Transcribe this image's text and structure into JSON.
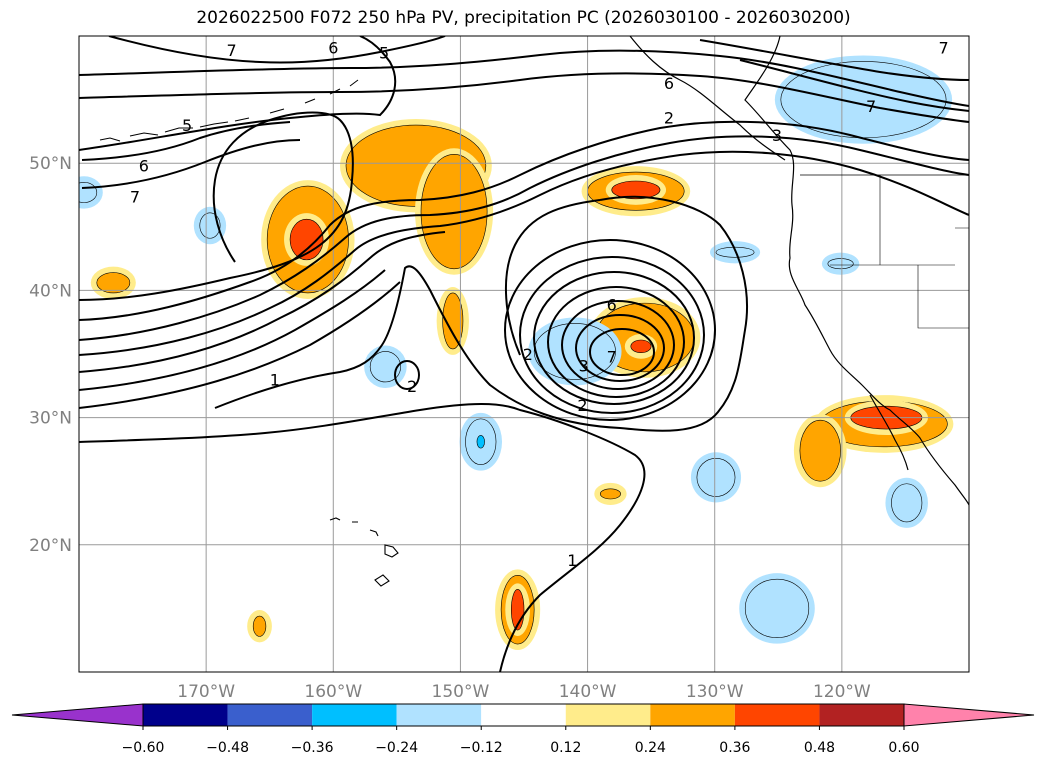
{
  "title": "2026022500 F072 250 hPa PV, precipitation PC (2026030100 - 2026030200)",
  "map": {
    "lon_range": [
      -180,
      -110
    ],
    "lat_range": [
      10,
      60
    ],
    "lon_ticks": [
      {
        "lon": -170,
        "label": "170°W"
      },
      {
        "lon": -160,
        "label": "160°W"
      },
      {
        "lon": -150,
        "label": "150°W"
      },
      {
        "lon": -140,
        "label": "140°W"
      },
      {
        "lon": -130,
        "label": "130°W"
      },
      {
        "lon": -120,
        "label": "120°W"
      }
    ],
    "lat_ticks": [
      {
        "lat": 20,
        "label": "20°N"
      },
      {
        "lat": 30,
        "label": "30°N"
      },
      {
        "lat": 40,
        "label": "40°N"
      },
      {
        "lat": 50,
        "label": "50°N"
      }
    ],
    "contour_labels": [
      {
        "text": "7",
        "lon": -168,
        "lat": 58.9
      },
      {
        "text": "6",
        "lon": -160,
        "lat": 59.1
      },
      {
        "text": "5",
        "lon": -156,
        "lat": 58.7
      },
      {
        "text": "5",
        "lon": -171.5,
        "lat": 53.0
      },
      {
        "text": "6",
        "lon": -174.9,
        "lat": 49.8
      },
      {
        "text": "7",
        "lon": -175.6,
        "lat": 47.4
      },
      {
        "text": "7",
        "lon": -112,
        "lat": 59.1
      },
      {
        "text": "6",
        "lon": -133.6,
        "lat": 56.3
      },
      {
        "text": "2",
        "lon": -133.6,
        "lat": 53.6
      },
      {
        "text": "3",
        "lon": -125.1,
        "lat": 52.2
      },
      {
        "text": "7",
        "lon": -117.7,
        "lat": 54.5
      },
      {
        "text": "6",
        "lon": -138.1,
        "lat": 38.9
      },
      {
        "text": "7",
        "lon": -138.1,
        "lat": 34.8
      },
      {
        "text": "3",
        "lon": -140.3,
        "lat": 34.1
      },
      {
        "text": "2",
        "lon": -140.4,
        "lat": 31.0
      },
      {
        "text": "1",
        "lon": -164.6,
        "lat": 33.0
      },
      {
        "text": "2",
        "lon": -153.8,
        "lat": 32.5
      },
      {
        "text": "1",
        "lon": -141.2,
        "lat": 18.8
      },
      {
        "text": "2",
        "lon": -144.7,
        "lat": 35.0
      }
    ],
    "precip_features": [
      {
        "value": 0.24,
        "lon": -162,
        "lat": 44,
        "rx": 3.2,
        "ry": 4.2
      },
      {
        "value": 0.36,
        "lon": -162.1,
        "lat": 44,
        "rx": 1.3,
        "ry": 1.6
      },
      {
        "value": 0.24,
        "lon": -153.5,
        "lat": 49.8,
        "rx": 5.5,
        "ry": 3.2
      },
      {
        "value": 0.24,
        "lon": -150.5,
        "lat": 46.2,
        "rx": 2.6,
        "ry": 4.5
      },
      {
        "value": 0.24,
        "lon": -136.2,
        "lat": 47.8,
        "rx": 3.8,
        "ry": 1.5
      },
      {
        "value": 0.36,
        "lon": -136.2,
        "lat": 47.9,
        "rx": 1.9,
        "ry": 0.7
      },
      {
        "value": 0.24,
        "lon": -135.5,
        "lat": 36.3,
        "rx": 3.9,
        "ry": 2.7
      },
      {
        "value": 0.36,
        "lon": -135.8,
        "lat": 35.6,
        "rx": 0.8,
        "ry": 0.5
      },
      {
        "value": 0.24,
        "lon": -150.6,
        "lat": 37.6,
        "rx": 0.8,
        "ry": 2.2
      },
      {
        "value": 0.24,
        "lon": -177.3,
        "lat": 40.6,
        "rx": 1.3,
        "ry": 0.8
      },
      {
        "value": 0.24,
        "lon": -145.5,
        "lat": 14.9,
        "rx": 1.3,
        "ry": 2.7
      },
      {
        "value": 0.36,
        "lon": -145.5,
        "lat": 14.9,
        "rx": 0.5,
        "ry": 1.6
      },
      {
        "value": 0.24,
        "lon": -165.8,
        "lat": 13.6,
        "rx": 0.5,
        "ry": 0.8
      },
      {
        "value": 0.24,
        "lon": -138.2,
        "lat": 24.0,
        "rx": 0.8,
        "ry": 0.4
      },
      {
        "value": 0.24,
        "lon": -116.7,
        "lat": 29.5,
        "rx": 5.0,
        "ry": 1.8
      },
      {
        "value": 0.36,
        "lon": -116.5,
        "lat": 30.0,
        "rx": 2.8,
        "ry": 0.9
      },
      {
        "value": 0.24,
        "lon": -121.7,
        "lat": 27.4,
        "rx": 1.6,
        "ry": 2.4
      },
      {
        "value": -0.24,
        "lon": -118.3,
        "lat": 55.0,
        "rx": 6.5,
        "ry": 3.0
      },
      {
        "value": -0.24,
        "lon": -141.0,
        "lat": 35.2,
        "rx": 3.2,
        "ry": 2.2
      },
      {
        "value": -0.24,
        "lon": -155.9,
        "lat": 34.0,
        "rx": 1.2,
        "ry": 1.2
      },
      {
        "value": -0.24,
        "lon": -148.4,
        "lat": 28.1,
        "rx": 1.2,
        "ry": 1.8
      },
      {
        "value": -0.36,
        "lon": -148.4,
        "lat": 28.1,
        "rx": 0.3,
        "ry": 0.5
      },
      {
        "value": -0.24,
        "lon": -129.9,
        "lat": 25.3,
        "rx": 1.5,
        "ry": 1.5
      },
      {
        "value": -0.24,
        "lon": -125.1,
        "lat": 15.0,
        "rx": 2.5,
        "ry": 2.3
      },
      {
        "value": -0.24,
        "lon": -114.9,
        "lat": 23.3,
        "rx": 1.2,
        "ry": 1.5
      },
      {
        "value": -0.24,
        "lon": -179.6,
        "lat": 47.7,
        "rx": 1.0,
        "ry": 0.8
      },
      {
        "value": -0.24,
        "lon": -169.7,
        "lat": 45.1,
        "rx": 0.8,
        "ry": 1.0
      },
      {
        "value": -0.24,
        "lon": -128.4,
        "lat": 43.0,
        "rx": 1.5,
        "ry": 0.4
      },
      {
        "value": -0.24,
        "lon": -120.1,
        "lat": 42.1,
        "rx": 1.0,
        "ry": 0.4
      }
    ]
  },
  "colorbar": {
    "colors": [
      "#9932CC",
      "#00008B",
      "#3A5FCD",
      "#00BFFF",
      "#B0E2FF",
      "#FFFFFF",
      "#FFEC8B",
      "#FFA500",
      "#FF4500",
      "#B22222",
      "#FF82AB"
    ],
    "ticks": [
      "−0.60",
      "−0.48",
      "−0.36",
      "−0.24",
      "−0.12",
      "0.12",
      "0.24",
      "0.36",
      "0.48",
      "0.60"
    ]
  }
}
